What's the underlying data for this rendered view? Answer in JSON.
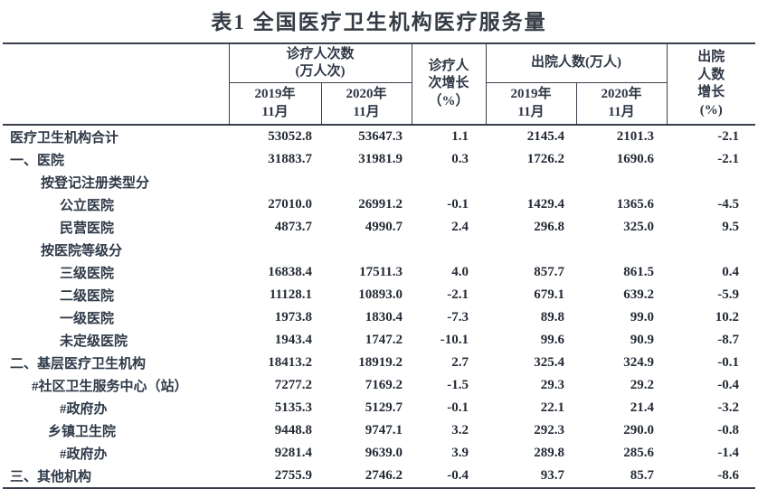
{
  "title": "表1 全国医疗卫生机构医疗服务量",
  "table": {
    "header": {
      "visits_group_line1": "诊疗人次数",
      "visits_group_line2": "(万人次)",
      "visits_growth_lines": [
        "诊疗人",
        "次增长",
        "（%）"
      ],
      "discharge_group": "出院人数(万人)",
      "discharge_growth_lines": [
        "出院",
        "人数",
        "增长",
        "(%)"
      ],
      "year_2019": "2019年",
      "year_2020": "2020年",
      "month": "11月"
    },
    "rows": [
      {
        "label": "医疗卫生机构合计",
        "indent": 0,
        "values": [
          "53052.8",
          "53647.3",
          "1.1",
          "2145.4",
          "2101.3",
          "-2.1"
        ]
      },
      {
        "label": "一、医院",
        "indent": 0,
        "values": [
          "31883.7",
          "31981.9",
          "0.3",
          "1726.2",
          "1690.6",
          "-2.1"
        ]
      },
      {
        "label": "按登记注册类型分",
        "indent": 2,
        "values": [
          "",
          "",
          "",
          "",
          "",
          ""
        ]
      },
      {
        "label": "公立医院",
        "indent": 4,
        "values": [
          "27010.0",
          "26991.2",
          "-0.1",
          "1429.4",
          "1365.6",
          "-4.5"
        ]
      },
      {
        "label": "民营医院",
        "indent": 4,
        "values": [
          "4873.7",
          "4990.7",
          "2.4",
          "296.8",
          "325.0",
          "9.5"
        ]
      },
      {
        "label": "按医院等级分",
        "indent": 2,
        "values": [
          "",
          "",
          "",
          "",
          "",
          ""
        ]
      },
      {
        "label": "三级医院",
        "indent": 4,
        "values": [
          "16838.4",
          "17511.3",
          "4.0",
          "857.7",
          "861.5",
          "0.4"
        ]
      },
      {
        "label": "二级医院",
        "indent": 4,
        "values": [
          "11128.1",
          "10893.0",
          "-2.1",
          "679.1",
          "639.2",
          "-5.9"
        ]
      },
      {
        "label": "一级医院",
        "indent": 4,
        "values": [
          "1973.8",
          "1830.4",
          "-7.3",
          "89.8",
          "99.0",
          "10.2"
        ]
      },
      {
        "label": "未定级医院",
        "indent": 4,
        "values": [
          "1943.4",
          "1747.2",
          "-10.1",
          "99.6",
          "90.9",
          "-8.7"
        ]
      },
      {
        "label": "二、基层医疗卫生机构",
        "indent": 0,
        "values": [
          "18413.2",
          "18919.2",
          "2.7",
          "325.4",
          "324.9",
          "-0.1"
        ]
      },
      {
        "label": "#社区卫生服务中心（站）",
        "indent": 1,
        "values": [
          "7277.2",
          "7169.2",
          "-1.5",
          "29.3",
          "29.2",
          "-0.4"
        ]
      },
      {
        "label": "#政府办",
        "indent": 4,
        "values": [
          "5135.3",
          "5129.7",
          "-0.1",
          "22.1",
          "21.4",
          "-3.2"
        ]
      },
      {
        "label": "乡镇卫生院",
        "indent": 3,
        "values": [
          "9448.8",
          "9747.1",
          "3.2",
          "292.3",
          "290.0",
          "-0.8"
        ]
      },
      {
        "label": "#政府办",
        "indent": 4,
        "values": [
          "9281.4",
          "9639.0",
          "3.9",
          "289.8",
          "285.6",
          "-1.4"
        ]
      },
      {
        "label": "三、其他机构",
        "indent": 0,
        "values": [
          "2755.9",
          "2746.2",
          "-0.4",
          "93.7",
          "85.7",
          "-8.6"
        ]
      }
    ]
  },
  "colors": {
    "text": "#2e3744",
    "border": "#39404b",
    "background": "#ffffff"
  }
}
